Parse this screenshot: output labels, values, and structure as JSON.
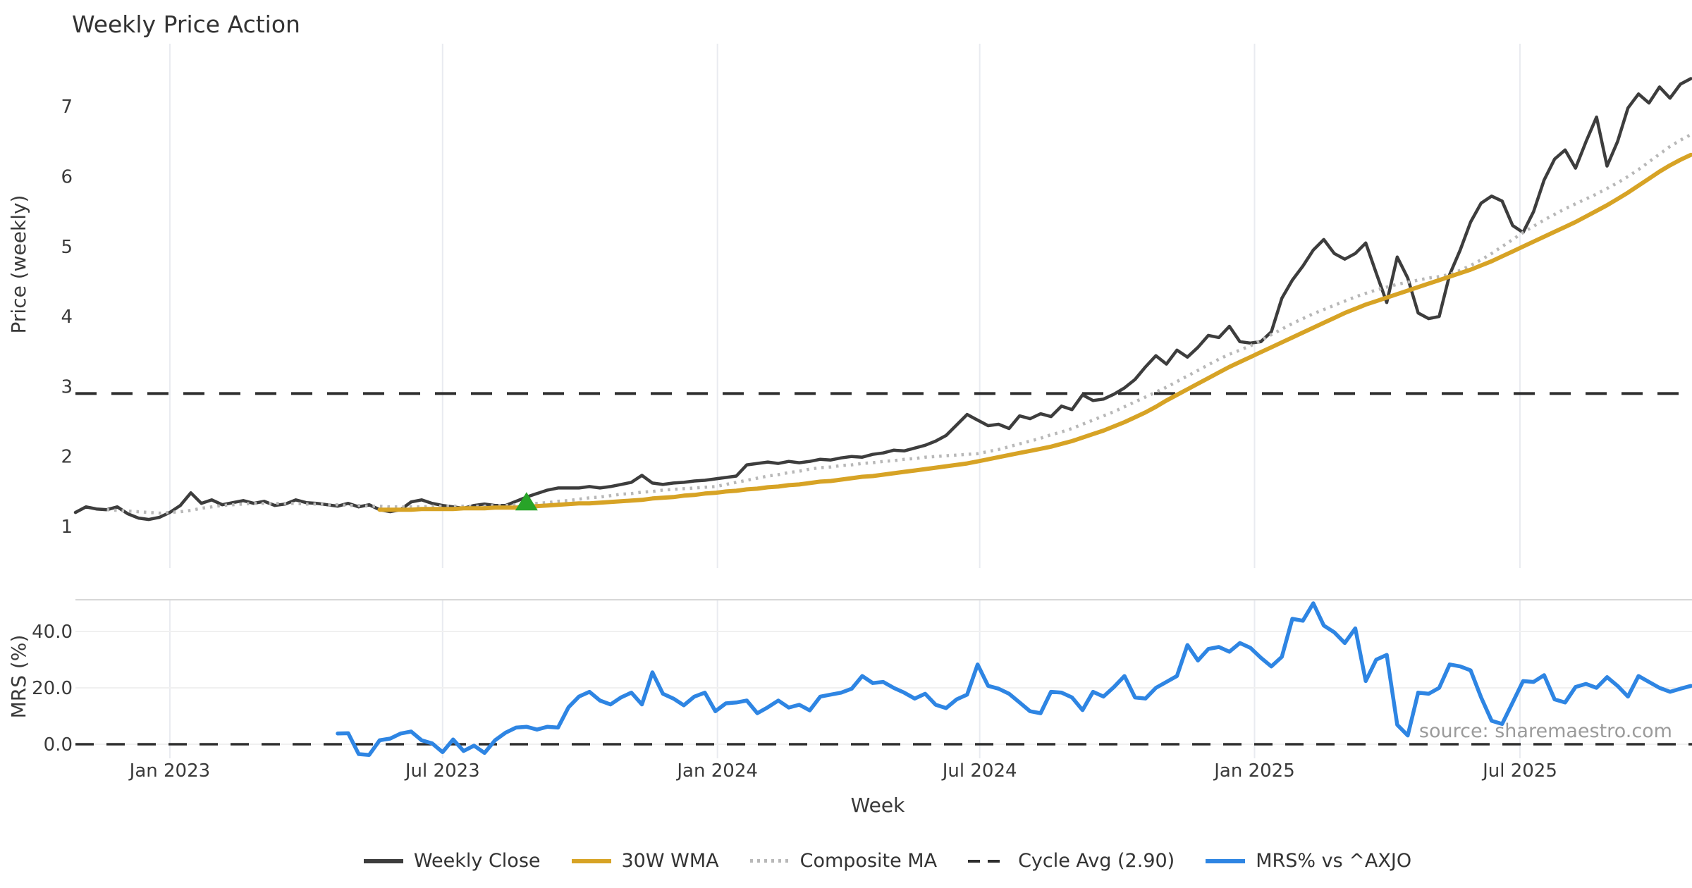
{
  "title": "Weekly Price Action",
  "source_note": "source: sharemaestro.com",
  "colors": {
    "weekly_close": "#3d3d3d",
    "wma_30w": "#d7a325",
    "composite_ma": "#b8b8b8",
    "cycle_avg": "#2e2e2e",
    "mrs": "#2e85e3",
    "signal_marker": "#28a428",
    "grid_vertical": "#e9ebf0",
    "grid_horizontal": "#f0f0f0",
    "panel_border": "#d7d7d7",
    "text": "#3a3a3a",
    "source_text": "#9b9b9b"
  },
  "legend": {
    "items": [
      {
        "label": "Weekly Close",
        "color": "#3d3d3d",
        "line_style": "solid"
      },
      {
        "label": "30W WMA",
        "color": "#d7a325",
        "line_style": "solid"
      },
      {
        "label": "Composite MA",
        "color": "#b8b8b8",
        "line_style": "dotted"
      },
      {
        "label": "Cycle Avg (2.90)",
        "color": "#2e2e2e",
        "line_style": "dashed"
      },
      {
        "label": "MRS% vs ^AXJO",
        "color": "#2e85e3",
        "line_style": "solid"
      }
    ]
  },
  "chart_data": {
    "type": "line",
    "title": "Weekly Price Action",
    "panels": {
      "price": {
        "ylabel": "Price (weekly)",
        "ticks": [
          1,
          2,
          3,
          4,
          5,
          6,
          7
        ],
        "ylim": [
          0.55,
          7.95
        ],
        "grid": "vertical-only"
      },
      "mrs": {
        "ylabel": "MRS (%)",
        "ticks": [
          0.0,
          20.0,
          40.0
        ],
        "tick_decimals": 1,
        "ylim": [
          -8,
          52
        ],
        "grid": "horizontal-and-vertical",
        "zero_line": {
          "value": 0.0,
          "style": "dashed",
          "color": "#2e2e2e"
        }
      }
    },
    "x_axis": {
      "label": "Week",
      "tick_labels": [
        "Jan 2023",
        "Jul 2023",
        "Jan 2024",
        "Jul 2024",
        "Jan 2025",
        "Jul 2025"
      ],
      "tick_week_positions": [
        9,
        35,
        61.2,
        86.2,
        112.4,
        137.7
      ],
      "weeks_total": 155
    },
    "legend_position": "bottom-center",
    "cycle_avg_line": {
      "name": "Cycle Avg (2.90)",
      "panel": "price",
      "value": 2.9,
      "style": "dashed",
      "color": "#2e2e2e"
    },
    "marker": {
      "name": "buy-signal",
      "shape": "triangle-up",
      "color": "#28a428",
      "panel": "price",
      "week": 43,
      "value": 1.42
    },
    "series": [
      {
        "name": "Weekly Close",
        "panel": "price",
        "color": "#3d3d3d",
        "line_style": "solid",
        "width": 4.5,
        "start_week": 0,
        "values": [
          1.2,
          1.28,
          1.25,
          1.24,
          1.28,
          1.18,
          1.12,
          1.1,
          1.13,
          1.2,
          1.3,
          1.48,
          1.33,
          1.38,
          1.31,
          1.34,
          1.37,
          1.33,
          1.36,
          1.3,
          1.32,
          1.38,
          1.34,
          1.33,
          1.31,
          1.29,
          1.33,
          1.28,
          1.31,
          1.24,
          1.21,
          1.24,
          1.35,
          1.38,
          1.33,
          1.3,
          1.28,
          1.26,
          1.3,
          1.32,
          1.3,
          1.3,
          1.36,
          1.42,
          1.47,
          1.52,
          1.55,
          1.55,
          1.55,
          1.57,
          1.55,
          1.57,
          1.6,
          1.63,
          1.73,
          1.62,
          1.6,
          1.62,
          1.63,
          1.65,
          1.66,
          1.68,
          1.7,
          1.72,
          1.88,
          1.9,
          1.92,
          1.9,
          1.93,
          1.91,
          1.93,
          1.96,
          1.95,
          1.98,
          2.0,
          1.99,
          2.03,
          2.05,
          2.09,
          2.08,
          2.12,
          2.16,
          2.22,
          2.3,
          2.45,
          2.6,
          2.52,
          2.44,
          2.46,
          2.4,
          2.58,
          2.54,
          2.61,
          2.57,
          2.72,
          2.67,
          2.88,
          2.8,
          2.82,
          2.89,
          2.98,
          3.1,
          3.28,
          3.44,
          3.32,
          3.52,
          3.42,
          3.56,
          3.73,
          3.7,
          3.86,
          3.64,
          3.62,
          3.64,
          3.78,
          4.26,
          4.52,
          4.72,
          4.95,
          5.1,
          4.9,
          4.82,
          4.9,
          5.05,
          4.62,
          4.2,
          4.85,
          4.55,
          4.05,
          3.97,
          4.0,
          4.6,
          4.95,
          5.35,
          5.62,
          5.72,
          5.65,
          5.3,
          5.2,
          5.5,
          5.95,
          6.25,
          6.38,
          6.12,
          6.5,
          6.85,
          6.15,
          6.5,
          6.98,
          7.18,
          7.05,
          7.28,
          7.12,
          7.32,
          7.4
        ]
      },
      {
        "name": "Composite MA",
        "panel": "price",
        "color": "#b8b8b8",
        "line_style": "dotted",
        "width": 4.5,
        "start_week": 3,
        "values": [
          1.24,
          1.23,
          1.22,
          1.21,
          1.2,
          1.19,
          1.2,
          1.21,
          1.23,
          1.26,
          1.28,
          1.3,
          1.31,
          1.32,
          1.33,
          1.33,
          1.33,
          1.33,
          1.33,
          1.32,
          1.32,
          1.31,
          1.31,
          1.3,
          1.3,
          1.29,
          1.29,
          1.28,
          1.28,
          1.28,
          1.28,
          1.29,
          1.29,
          1.29,
          1.29,
          1.29,
          1.29,
          1.3,
          1.3,
          1.31,
          1.32,
          1.33,
          1.34,
          1.36,
          1.37,
          1.39,
          1.41,
          1.42,
          1.44,
          1.46,
          1.47,
          1.49,
          1.5,
          1.52,
          1.53,
          1.54,
          1.55,
          1.56,
          1.57,
          1.6,
          1.63,
          1.66,
          1.69,
          1.72,
          1.74,
          1.77,
          1.79,
          1.82,
          1.84,
          1.85,
          1.87,
          1.88,
          1.9,
          1.91,
          1.93,
          1.94,
          1.96,
          1.97,
          1.99,
          2.0,
          2.01,
          2.02,
          2.03,
          2.04,
          2.07,
          2.1,
          2.14,
          2.18,
          2.22,
          2.26,
          2.31,
          2.35,
          2.4,
          2.46,
          2.52,
          2.58,
          2.64,
          2.71,
          2.78,
          2.85,
          2.92,
          2.99,
          3.07,
          3.15,
          3.23,
          3.31,
          3.39,
          3.46,
          3.52,
          3.58,
          3.66,
          3.74,
          3.82,
          3.9,
          3.97,
          4.04,
          4.1,
          4.16,
          4.22,
          4.28,
          4.33,
          4.38,
          4.42,
          4.46,
          4.49,
          4.52,
          4.55,
          4.57,
          4.6,
          4.66,
          4.73,
          4.81,
          4.9,
          5.0,
          5.1,
          5.2,
          5.29,
          5.38,
          5.46,
          5.54,
          5.61,
          5.68,
          5.75,
          5.83,
          5.91,
          6.0,
          6.1,
          6.21,
          6.32,
          6.43,
          6.52,
          6.6
        ]
      },
      {
        "name": "30W WMA",
        "panel": "price",
        "color": "#d7a325",
        "line_style": "solid",
        "width": 6,
        "start_week": 29,
        "values": [
          1.24,
          1.24,
          1.24,
          1.24,
          1.25,
          1.25,
          1.25,
          1.25,
          1.26,
          1.26,
          1.26,
          1.27,
          1.27,
          1.27,
          1.28,
          1.29,
          1.3,
          1.31,
          1.32,
          1.33,
          1.33,
          1.34,
          1.35,
          1.36,
          1.37,
          1.38,
          1.4,
          1.41,
          1.42,
          1.44,
          1.45,
          1.47,
          1.48,
          1.5,
          1.51,
          1.53,
          1.54,
          1.56,
          1.57,
          1.59,
          1.6,
          1.62,
          1.64,
          1.65,
          1.67,
          1.69,
          1.71,
          1.72,
          1.74,
          1.76,
          1.78,
          1.8,
          1.82,
          1.84,
          1.86,
          1.88,
          1.9,
          1.93,
          1.96,
          1.99,
          2.02,
          2.05,
          2.08,
          2.11,
          2.14,
          2.18,
          2.22,
          2.27,
          2.32,
          2.37,
          2.43,
          2.49,
          2.56,
          2.63,
          2.71,
          2.8,
          2.88,
          2.96,
          3.04,
          3.12,
          3.2,
          3.28,
          3.35,
          3.42,
          3.49,
          3.56,
          3.63,
          3.7,
          3.77,
          3.84,
          3.91,
          3.98,
          4.05,
          4.11,
          4.17,
          4.22,
          4.27,
          4.32,
          4.37,
          4.42,
          4.47,
          4.52,
          4.57,
          4.62,
          4.67,
          4.73,
          4.79,
          4.86,
          4.93,
          5.0,
          5.07,
          5.14,
          5.21,
          5.28,
          5.35,
          5.43,
          5.51,
          5.59,
          5.68,
          5.77,
          5.87,
          5.97,
          6.07,
          6.16,
          6.24,
          6.31
        ]
      },
      {
        "name": "MRS% vs ^AXJO",
        "panel": "mrs",
        "color": "#2e85e3",
        "line_style": "solid",
        "width": 5.5,
        "start_week": 25,
        "values": [
          3.8,
          3.9,
          -3.5,
          -3.8,
          1.4,
          2.0,
          3.8,
          4.5,
          1.4,
          0.3,
          -2.8,
          1.7,
          -2.4,
          -0.5,
          -3.1,
          1.4,
          4.1,
          5.9,
          6.2,
          5.2,
          6.2,
          5.9,
          13.1,
          16.9,
          18.6,
          15.5,
          14.1,
          16.6,
          18.3,
          14.1,
          25.5,
          17.9,
          16.2,
          13.8,
          16.9,
          18.3,
          11.7,
          14.5,
          14.8,
          15.5,
          11.0,
          13.1,
          15.5,
          13.0,
          14.0,
          12.0,
          16.9,
          17.6,
          18.3,
          19.7,
          24.2,
          21.7,
          22.1,
          20.0,
          18.3,
          16.2,
          17.9,
          14.0,
          12.8,
          15.9,
          17.6,
          28.3,
          20.7,
          19.7,
          17.9,
          14.8,
          11.7,
          11.0,
          18.6,
          18.3,
          16.6,
          12.1,
          18.6,
          16.9,
          20.3,
          24.2,
          16.6,
          16.2,
          20.0,
          22.1,
          24.2,
          35.2,
          29.7,
          33.8,
          34.5,
          32.8,
          35.9,
          34.2,
          30.7,
          27.6,
          31.0,
          44.5,
          43.8,
          50.0,
          42.1,
          39.7,
          35.9,
          41.1,
          22.4,
          30.0,
          31.7,
          6.9,
          3.1,
          18.3,
          17.9,
          20.0,
          28.3,
          27.6,
          26.2,
          16.6,
          8.3,
          7.2,
          14.8,
          22.4,
          22.1,
          24.5,
          15.9,
          14.8,
          20.3,
          21.4,
          20.0,
          23.8,
          20.7,
          16.9,
          24.2,
          22.1,
          20.0,
          18.6,
          19.7,
          20.7
        ]
      }
    ]
  }
}
